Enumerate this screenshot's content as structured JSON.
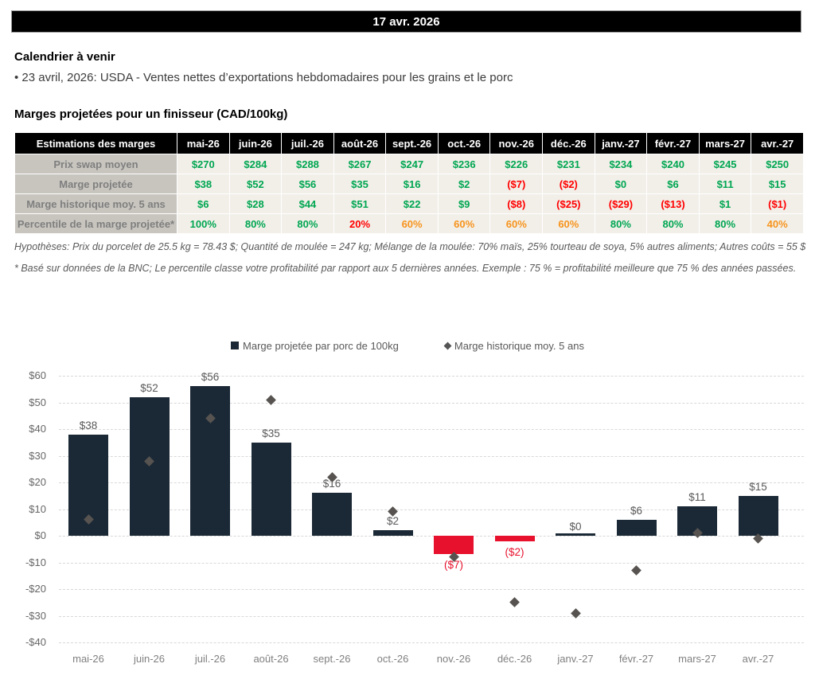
{
  "banner": {
    "date": "17 avr. 2026"
  },
  "calendar": {
    "title": "Calendrier à venir",
    "item": "• 23 avril, 2026: USDA - Ventes nettes d’exportations hebdomadaires pour les grains et le porc"
  },
  "margins_section": {
    "title": "Marges projetées pour un finisseur (CAD/100kg)",
    "table": {
      "header": [
        "Estimations des marges",
        "mai-26",
        "juin-26",
        "juil.-26",
        "août-26",
        "sept.-26",
        "oct.-26",
        "nov.-26",
        "déc.-26",
        "janv.-27",
        "févr.-27",
        "mars-27",
        "avr.-27"
      ],
      "rows": [
        {
          "label": "Prix swap moyen",
          "values": [
            "$270",
            "$284",
            "$288",
            "$267",
            "$247",
            "$236",
            "$226",
            "$231",
            "$234",
            "$240",
            "$245",
            "$250"
          ],
          "colors": [
            "g",
            "g",
            "g",
            "g",
            "g",
            "g",
            "g",
            "g",
            "g",
            "g",
            "g",
            "g"
          ]
        },
        {
          "label": "Marge projetée",
          "values": [
            "$38",
            "$52",
            "$56",
            "$35",
            "$16",
            "$2",
            "($7)",
            "($2)",
            "$0",
            "$6",
            "$11",
            "$15"
          ],
          "colors": [
            "g",
            "g",
            "g",
            "g",
            "g",
            "g",
            "r",
            "r",
            "g",
            "g",
            "g",
            "g"
          ]
        },
        {
          "label": "Marge historique moy. 5 ans",
          "values": [
            "$6",
            "$28",
            "$44",
            "$51",
            "$22",
            "$9",
            "($8)",
            "($25)",
            "($29)",
            "($13)",
            "$1",
            "($1)"
          ],
          "colors": [
            "g",
            "g",
            "g",
            "g",
            "g",
            "g",
            "r",
            "r",
            "r",
            "r",
            "g",
            "r"
          ]
        },
        {
          "label": "Percentile de la marge projetée*",
          "values": [
            "100%",
            "80%",
            "80%",
            "20%",
            "60%",
            "60%",
            "60%",
            "60%",
            "80%",
            "80%",
            "80%",
            "40%"
          ],
          "colors": [
            "g",
            "g",
            "g",
            "r",
            "o",
            "o",
            "o",
            "o",
            "g",
            "g",
            "g",
            "o"
          ]
        }
      ]
    },
    "hypotheses": "Hypothèses: Prix du porcelet de 25.5 kg = 78.43 $; Quantité de moulée = 247 kg; Mélange de la moulée: 70% maïs, 25% tourteau de soya, 5% autres aliments; Autres coûts = 55 $",
    "footnote": "* Basé sur données de la BNC; Le percentile classe votre profitabilité par rapport aux 5 dernières années. Exemple : 75 % = profitabilité meilleure que 75 % des années passées."
  },
  "chart_data": {
    "type": "bar",
    "categories": [
      "mai-26",
      "juin-26",
      "juil.-26",
      "août-26",
      "sept.-26",
      "oct.-26",
      "nov.-26",
      "déc.-26",
      "janv.-27",
      "févr.-27",
      "mars-27",
      "avr.-27"
    ],
    "series": [
      {
        "name": "Marge projetée par porc de 100kg",
        "type": "bar",
        "values": [
          38,
          52,
          56,
          35,
          16,
          2,
          -7,
          -2,
          0,
          6,
          11,
          15
        ],
        "labels": [
          "$38",
          "$52",
          "$56",
          "$35",
          "$16",
          "$2",
          "($7)",
          "($2)",
          "$0",
          "$6",
          "$11",
          "$15"
        ]
      },
      {
        "name": "Marge historique moy. 5 ans",
        "type": "scatter",
        "marker": "diamond",
        "values": [
          6,
          28,
          44,
          51,
          22,
          9,
          -8,
          -25,
          -29,
          -13,
          1,
          -1
        ]
      }
    ],
    "title": "",
    "xlabel": "",
    "ylabel": "",
    "ylim": [
      -40,
      60
    ],
    "ytick_step": 10,
    "ytick_labels": [
      "$60",
      "$50",
      "$40",
      "$30",
      "$20",
      "$10",
      "$0",
      "-$10",
      "-$20",
      "-$30",
      "-$40"
    ],
    "grid": "horizontal-dashed",
    "legend_position": "top",
    "colors": {
      "bar_positive": "#1b2936",
      "bar_negative": "#e8112d",
      "diamond": "#575350",
      "label_positive": "#595959",
      "label_negative": "#e8112d",
      "table_green": "#00a651",
      "table_red": "#ff0000",
      "table_orange": "#f7941d"
    }
  }
}
